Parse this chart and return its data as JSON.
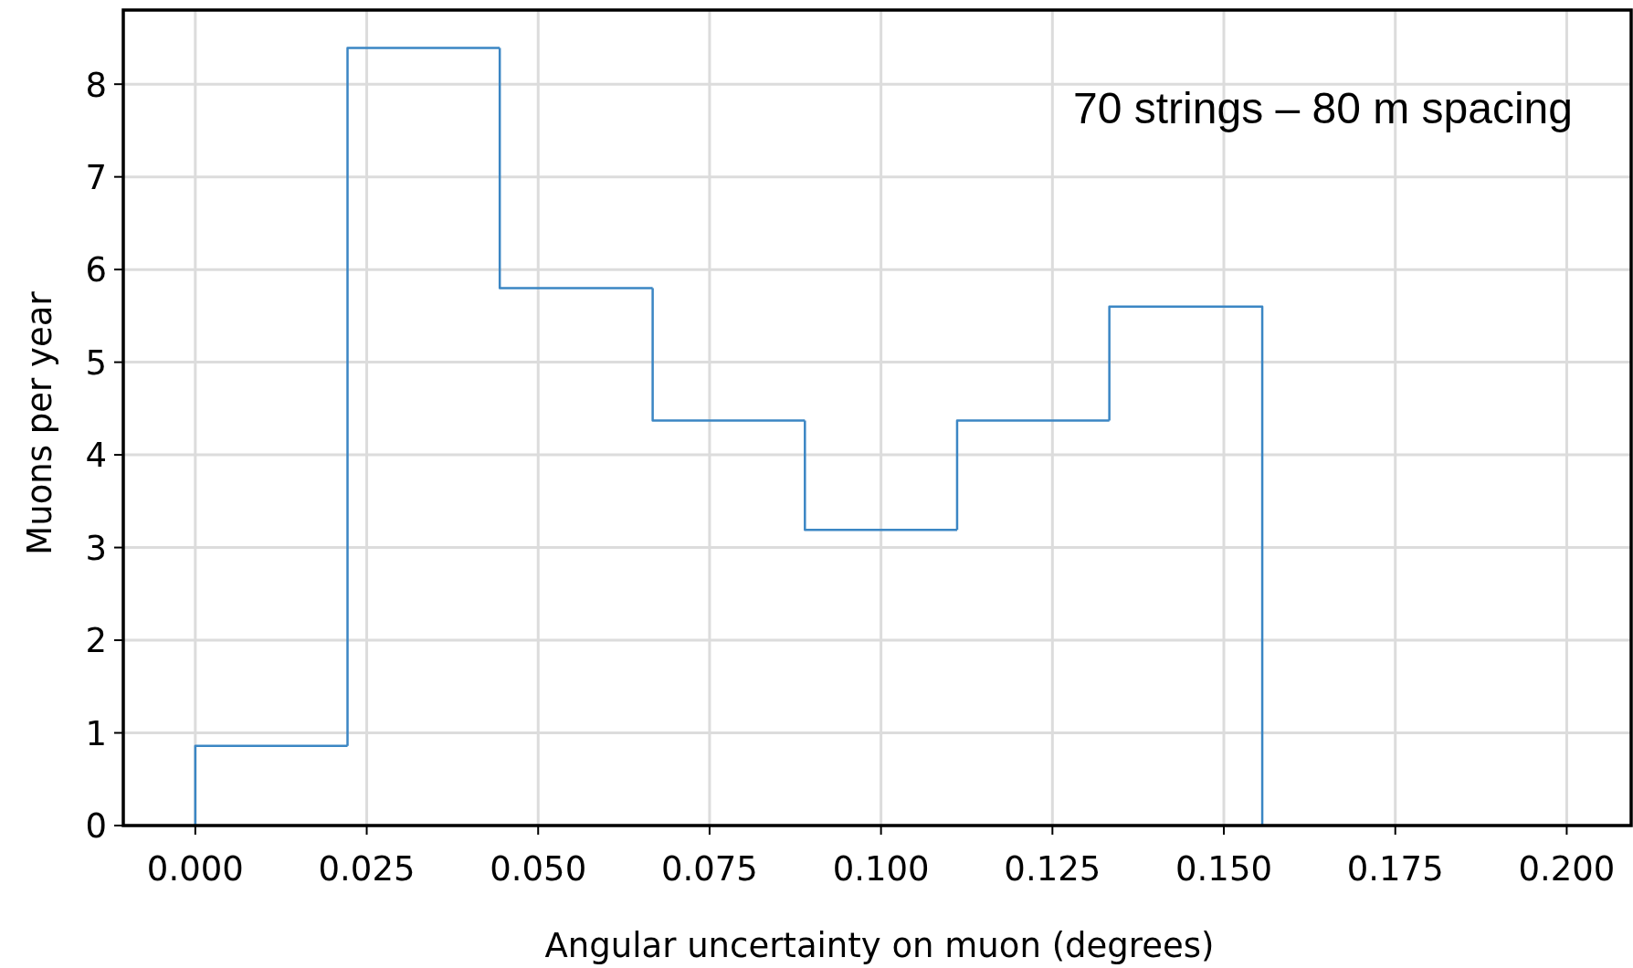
{
  "chart_data": {
    "type": "histogram",
    "xlabel": "Angular uncertainty on muon (degrees)",
    "ylabel": "Muons per year",
    "annotations": [
      "70 strings – 80 m spacing"
    ],
    "bins": [
      0,
      0.0222,
      0.0444,
      0.0667,
      0.0889,
      0.1111,
      0.1333,
      0.1556
    ],
    "values": [
      0.86,
      8.39,
      5.8,
      4.37,
      3.19,
      4.37,
      5.6
    ],
    "color": "#3b86c4",
    "xlim": [
      -0.0105,
      0.2094
    ],
    "ylim": [
      0,
      8.8
    ],
    "xticks": [
      {
        "value": 0,
        "label": "0.000"
      },
      {
        "value": 0.025,
        "label": "0.025"
      },
      {
        "value": 0.05,
        "label": "0.050"
      },
      {
        "value": 0.075,
        "label": "0.075"
      },
      {
        "value": 0.1,
        "label": "0.100"
      },
      {
        "value": 0.125,
        "label": "0.125"
      },
      {
        "value": 0.15,
        "label": "0.150"
      },
      {
        "value": 0.175,
        "label": "0.175"
      },
      {
        "value": 0.2,
        "label": "0.200"
      }
    ],
    "yticks": [
      0,
      1,
      2,
      3,
      4,
      5,
      6,
      7,
      8
    ],
    "grid": true
  }
}
